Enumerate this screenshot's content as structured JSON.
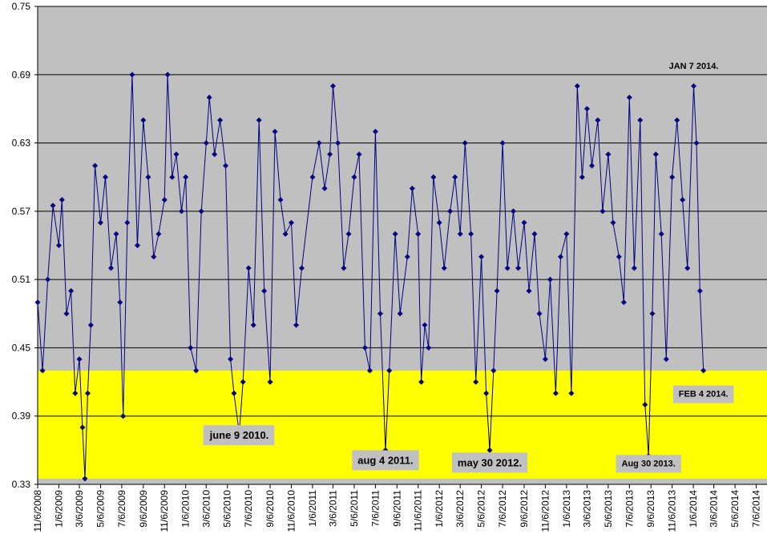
{
  "chart_data": {
    "type": "line",
    "title": "",
    "xlabel": "",
    "ylabel": "",
    "ylim": [
      0.33,
      0.75
    ],
    "y_ticks": [
      "0.33",
      "0.39",
      "0.45",
      "0.51",
      "0.57",
      "0.63",
      "0.69",
      "0.75"
    ],
    "x_ticks": [
      "11/6/2008",
      "1/6/2009",
      "3/6/2009",
      "5/6/2009",
      "7/6/2009",
      "9/6/2009",
      "11/6/2009",
      "1/6/2010",
      "3/6/2010",
      "5/6/2010",
      "7/6/2010",
      "9/6/2010",
      "11/6/2010",
      "1/6/2011",
      "3/6/2011",
      "5/6/2011",
      "7/6/2011",
      "9/6/2011",
      "11/6/2011",
      "1/6/2012",
      "3/6/2012",
      "5/6/2012",
      "7/6/2012",
      "9/6/2012",
      "11/6/2012",
      "1/6/2013",
      "3/6/2013",
      "5/6/2013",
      "7/6/2013",
      "9/6/2013",
      "11/6/2013",
      "1/6/2014",
      "3/6/2014",
      "5/6/2014",
      "7/6/2014"
    ],
    "x_range": [
      "2008-11-06",
      "2014-08-06"
    ],
    "grid": "horizontal",
    "background_color": "#c0c0c0",
    "highlight_band": {
      "from": 0.33,
      "to": 0.43,
      "color": "#ffff00"
    },
    "series": [
      {
        "color": "#000080",
        "marker": "diamond",
        "points": [
          [
            "2008-11-06",
            0.49
          ],
          [
            "2008-11-20",
            0.43
          ],
          [
            "2008-12-05",
            0.51
          ],
          [
            "2008-12-20",
            0.575
          ],
          [
            "2009-01-06",
            0.54
          ],
          [
            "2009-01-15",
            0.58
          ],
          [
            "2009-01-28",
            0.48
          ],
          [
            "2009-02-10",
            0.5
          ],
          [
            "2009-02-22",
            0.41
          ],
          [
            "2009-03-06",
            0.44
          ],
          [
            "2009-03-15",
            0.38
          ],
          [
            "2009-03-22",
            0.335
          ],
          [
            "2009-03-30",
            0.41
          ],
          [
            "2009-04-08",
            0.47
          ],
          [
            "2009-04-20",
            0.61
          ],
          [
            "2009-05-06",
            0.56
          ],
          [
            "2009-05-20",
            0.6
          ],
          [
            "2009-06-05",
            0.52
          ],
          [
            "2009-06-20",
            0.55
          ],
          [
            "2009-07-01",
            0.49
          ],
          [
            "2009-07-10",
            0.39
          ],
          [
            "2009-07-22",
            0.56
          ],
          [
            "2009-08-05",
            0.69
          ],
          [
            "2009-08-20",
            0.54
          ],
          [
            "2009-09-06",
            0.65
          ],
          [
            "2009-09-20",
            0.6
          ],
          [
            "2009-10-06",
            0.53
          ],
          [
            "2009-10-20",
            0.55
          ],
          [
            "2009-11-06",
            0.58
          ],
          [
            "2009-11-15",
            0.69
          ],
          [
            "2009-11-28",
            0.6
          ],
          [
            "2009-12-10",
            0.62
          ],
          [
            "2009-12-25",
            0.57
          ],
          [
            "2010-01-06",
            0.6
          ],
          [
            "2010-01-20",
            0.45
          ],
          [
            "2010-02-05",
            0.43
          ],
          [
            "2010-02-20",
            0.57
          ],
          [
            "2010-03-06",
            0.63
          ],
          [
            "2010-03-15",
            0.67
          ],
          [
            "2010-03-30",
            0.62
          ],
          [
            "2010-04-15",
            0.65
          ],
          [
            "2010-05-01",
            0.61
          ],
          [
            "2010-05-15",
            0.44
          ],
          [
            "2010-05-25",
            0.41
          ],
          [
            "2010-06-09",
            0.375
          ],
          [
            "2010-06-20",
            0.42
          ],
          [
            "2010-07-06",
            0.52
          ],
          [
            "2010-07-20",
            0.47
          ],
          [
            "2010-08-05",
            0.65
          ],
          [
            "2010-08-20",
            0.5
          ],
          [
            "2010-09-06",
            0.42
          ],
          [
            "2010-09-20",
            0.64
          ],
          [
            "2010-10-06",
            0.58
          ],
          [
            "2010-10-20",
            0.55
          ],
          [
            "2010-11-06",
            0.56
          ],
          [
            "2010-11-20",
            0.47
          ],
          [
            "2010-12-06",
            0.52
          ],
          [
            "2011-01-06",
            0.6
          ],
          [
            "2011-01-25",
            0.63
          ],
          [
            "2011-02-10",
            0.59
          ],
          [
            "2011-02-25",
            0.62
          ],
          [
            "2011-03-06",
            0.68
          ],
          [
            "2011-03-20",
            0.63
          ],
          [
            "2011-04-06",
            0.52
          ],
          [
            "2011-04-20",
            0.55
          ],
          [
            "2011-05-06",
            0.6
          ],
          [
            "2011-05-20",
            0.62
          ],
          [
            "2011-06-06",
            0.45
          ],
          [
            "2011-06-20",
            0.43
          ],
          [
            "2011-07-06",
            0.64
          ],
          [
            "2011-07-20",
            0.48
          ],
          [
            "2011-08-04",
            0.36
          ],
          [
            "2011-08-15",
            0.43
          ],
          [
            "2011-09-01",
            0.55
          ],
          [
            "2011-09-15",
            0.48
          ],
          [
            "2011-10-06",
            0.53
          ],
          [
            "2011-10-20",
            0.59
          ],
          [
            "2011-11-06",
            0.55
          ],
          [
            "2011-11-15",
            0.42
          ],
          [
            "2011-11-25",
            0.47
          ],
          [
            "2011-12-06",
            0.45
          ],
          [
            "2011-12-20",
            0.6
          ],
          [
            "2012-01-06",
            0.56
          ],
          [
            "2012-01-20",
            0.52
          ],
          [
            "2012-02-06",
            0.57
          ],
          [
            "2012-02-20",
            0.6
          ],
          [
            "2012-03-06",
            0.55
          ],
          [
            "2012-03-20",
            0.63
          ],
          [
            "2012-04-06",
            0.55
          ],
          [
            "2012-04-20",
            0.42
          ],
          [
            "2012-05-06",
            0.53
          ],
          [
            "2012-05-20",
            0.41
          ],
          [
            "2012-05-30",
            0.36
          ],
          [
            "2012-06-10",
            0.43
          ],
          [
            "2012-06-20",
            0.5
          ],
          [
            "2012-07-06",
            0.63
          ],
          [
            "2012-07-20",
            0.52
          ],
          [
            "2012-08-06",
            0.57
          ],
          [
            "2012-08-20",
            0.52
          ],
          [
            "2012-09-06",
            0.56
          ],
          [
            "2012-09-20",
            0.5
          ],
          [
            "2012-10-06",
            0.55
          ],
          [
            "2012-10-20",
            0.48
          ],
          [
            "2012-11-06",
            0.44
          ],
          [
            "2012-11-20",
            0.51
          ],
          [
            "2012-12-06",
            0.41
          ],
          [
            "2012-12-20",
            0.53
          ],
          [
            "2013-01-06",
            0.55
          ],
          [
            "2013-01-20",
            0.41
          ],
          [
            "2013-02-06",
            0.68
          ],
          [
            "2013-02-20",
            0.6
          ],
          [
            "2013-03-06",
            0.66
          ],
          [
            "2013-03-20",
            0.61
          ],
          [
            "2013-04-06",
            0.65
          ],
          [
            "2013-04-20",
            0.57
          ],
          [
            "2013-05-06",
            0.62
          ],
          [
            "2013-05-20",
            0.56
          ],
          [
            "2013-06-06",
            0.53
          ],
          [
            "2013-06-20",
            0.49
          ],
          [
            "2013-07-06",
            0.67
          ],
          [
            "2013-07-20",
            0.52
          ],
          [
            "2013-08-06",
            0.65
          ],
          [
            "2013-08-20",
            0.4
          ],
          [
            "2013-08-30",
            0.355
          ],
          [
            "2013-09-10",
            0.48
          ],
          [
            "2013-09-20",
            0.62
          ],
          [
            "2013-10-06",
            0.55
          ],
          [
            "2013-10-20",
            0.44
          ],
          [
            "2013-11-06",
            0.6
          ],
          [
            "2013-11-20",
            0.65
          ],
          [
            "2013-12-06",
            0.58
          ],
          [
            "2013-12-20",
            0.52
          ],
          [
            "2014-01-07",
            0.68
          ],
          [
            "2014-01-15",
            0.63
          ],
          [
            "2014-01-25",
            0.5
          ],
          [
            "2014-02-04",
            0.43
          ]
        ]
      }
    ],
    "annotations": [
      {
        "text": "JAN 7 2014.",
        "date": "2014-01-07",
        "y": 0.695,
        "boxed": false,
        "font_size": 11
      },
      {
        "text": "FEB 4 2014.",
        "date": "2014-02-04",
        "y": 0.407,
        "boxed": true,
        "font_size": 11
      },
      {
        "text": "june 9 2010.",
        "date": "2010-06-09",
        "y": 0.37,
        "boxed": true,
        "font_size": 13
      },
      {
        "text": "aug 4 2011.",
        "date": "2011-08-04",
        "y": 0.348,
        "boxed": true,
        "font_size": 13
      },
      {
        "text": "may 30 2012.",
        "date": "2012-05-30",
        "y": 0.346,
        "boxed": true,
        "font_size": 13
      },
      {
        "text": "Aug 30 2013.",
        "date": "2013-08-30",
        "y": 0.346,
        "boxed": true,
        "font_size": 11
      }
    ]
  }
}
